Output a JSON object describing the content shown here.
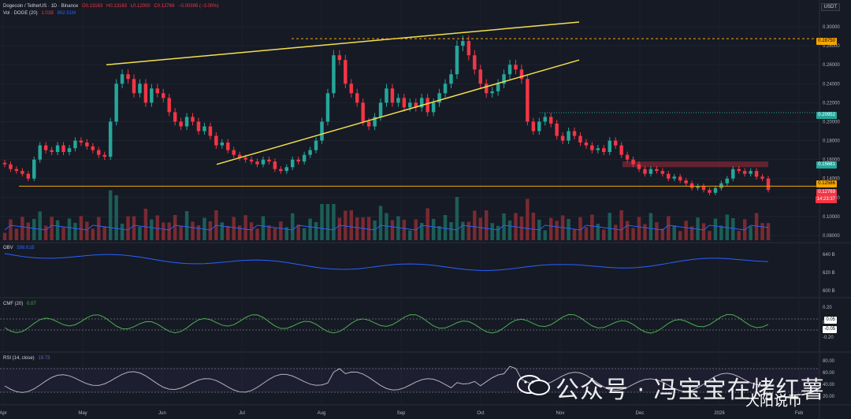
{
  "header": {
    "symbol": "Dogecoin / TetherUS · 1D · Binance",
    "o": "O0.13163",
    "h": "H0.13163",
    "l": "L0.12000",
    "c": "C0.12769",
    "chg": "−0.00395 (−3.00%)",
    "vol_label": "Vol · DOGE (20)",
    "vol_val": "1.01B",
    "vol_ma": "892.51M"
  },
  "currency": "USDT",
  "panes": {
    "obv": {
      "label": "OBV",
      "value": "598.61B"
    },
    "cmf": {
      "label": "CMF (20)",
      "value": "0.07"
    },
    "rsi": {
      "label": "RSI (14, close)",
      "value": "19.73"
    }
  },
  "price_tags": {
    "t1": "0.28750",
    "t2": "0.20952",
    "t3": "0.15681",
    "t4": "0.12586",
    "t5": "0.12769",
    "t6": "14:23:37",
    "cmf_a": "0.05",
    "cmf_b": "-0.05"
  },
  "watermark": {
    "text": "公众号 · 冯宝宝在烤红薯",
    "brand": "大阳说币"
  },
  "chart_data": {
    "type": "candlestick",
    "title": "Dogecoin / TetherUS · 1D · Binance",
    "price_axis": {
      "ticks": [
        "0.30000",
        "0.28000",
        "0.26000",
        "0.24000",
        "0.22000",
        "0.20000",
        "0.18000",
        "0.16000",
        "0.14000",
        "0.12000",
        "0.10000",
        "0.08000"
      ],
      "range": [
        0.075,
        0.31
      ]
    },
    "obv_axis": {
      "ticks": [
        "640 B",
        "620 B",
        "600 B"
      ]
    },
    "cmf_axis": {
      "ticks": [
        "0.20",
        "0.00",
        "-0.20"
      ]
    },
    "rsi_axis": {
      "ticks": [
        "80.00",
        "60.00",
        "40.00",
        "20.00"
      ]
    },
    "x_ticks": [
      "Apr",
      "May",
      "Jun",
      "Jul",
      "Aug",
      "Sep",
      "Oct",
      "Nov",
      "Dec",
      "2026",
      "Feb"
    ],
    "trend": [
      0.155,
      0.15,
      0.148,
      0.145,
      0.14,
      0.16,
      0.175,
      0.17,
      0.168,
      0.175,
      0.168,
      0.172,
      0.18,
      0.178,
      0.174,
      0.17,
      0.165,
      0.163,
      0.2,
      0.24,
      0.25,
      0.245,
      0.23,
      0.24,
      0.22,
      0.235,
      0.23,
      0.225,
      0.21,
      0.2,
      0.195,
      0.205,
      0.2,
      0.19,
      0.195,
      0.185,
      0.175,
      0.178,
      0.17,
      0.165,
      0.162,
      0.16,
      0.158,
      0.155,
      0.16,
      0.158,
      0.15,
      0.148,
      0.152,
      0.16,
      0.158,
      0.165,
      0.17,
      0.18,
      0.2,
      0.23,
      0.27,
      0.265,
      0.24,
      0.23,
      0.22,
      0.2,
      0.195,
      0.205,
      0.22,
      0.235,
      0.22,
      0.225,
      0.215,
      0.22,
      0.215,
      0.225,
      0.21,
      0.22,
      0.23,
      0.24,
      0.25,
      0.28,
      0.285,
      0.27,
      0.255,
      0.24,
      0.23,
      0.232,
      0.24,
      0.25,
      0.26,
      0.255,
      0.245,
      0.2,
      0.19,
      0.2,
      0.205,
      0.198,
      0.185,
      0.18,
      0.19,
      0.185,
      0.178,
      0.175,
      0.17,
      0.172,
      0.168,
      0.18,
      0.175,
      0.165,
      0.16,
      0.155,
      0.15,
      0.145,
      0.15,
      0.148,
      0.145,
      0.14,
      0.142,
      0.138,
      0.135,
      0.13,
      0.132,
      0.128,
      0.125,
      0.13,
      0.135,
      0.14,
      0.15,
      0.148,
      0.145,
      0.148,
      0.142,
      0.14,
      0.128
    ],
    "annotations": [
      "ascending wedge (yellow)",
      "horizontal support line",
      "resistance zone"
    ]
  }
}
